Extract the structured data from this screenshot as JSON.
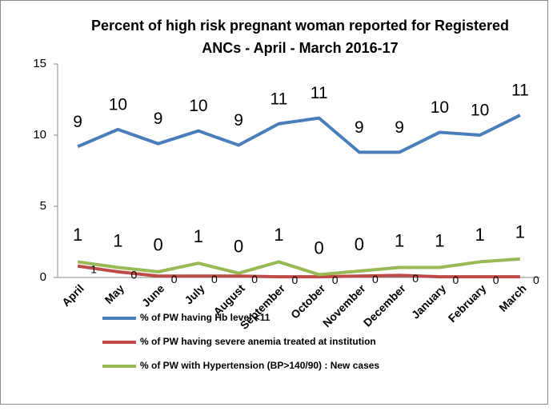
{
  "chart_data": {
    "type": "line",
    "title": "Percent of high risk pregnant woman reported for Registered ANCs - April - March 2016-17",
    "categories": [
      "April",
      "May",
      "June",
      "July",
      "August",
      "September",
      "October",
      "November",
      "December",
      "January",
      "February",
      "March"
    ],
    "series": [
      {
        "name": "% of PW having Hb level <11",
        "color": "#4a7ebb",
        "values": [
          9.2,
          10.4,
          9.4,
          10.3,
          9.3,
          10.8,
          11.2,
          8.8,
          8.8,
          10.2,
          10.0,
          11.4
        ],
        "value_labels": [
          "9",
          "10",
          "9",
          "10",
          "9",
          "11",
          "11",
          "9",
          "9",
          "10",
          "10",
          "11"
        ]
      },
      {
        "name": "% of PW having severe anemia treated at institution",
        "color": "#be4b48",
        "values": [
          0.8,
          0.4,
          0.1,
          0.1,
          0.1,
          0.05,
          0.05,
          0.1,
          0.15,
          0.05,
          0.05,
          0.05
        ],
        "value_labels": [
          "1",
          "0",
          "0",
          "0",
          "0",
          "0",
          "0",
          "0",
          "0",
          "0",
          "0",
          "0"
        ]
      },
      {
        "name": "% of PW with Hypertension (BP>140/90) : New cases",
        "color": "#98b954",
        "values": [
          1.1,
          0.7,
          0.4,
          1.0,
          0.3,
          1.1,
          0.2,
          0.45,
          0.7,
          0.7,
          1.1,
          1.3
        ],
        "value_labels": [
          "1",
          "1",
          "0",
          "1",
          "0",
          "1",
          "0",
          "0",
          "1",
          "1",
          "1",
          "1"
        ]
      }
    ],
    "ylim": [
      0,
      15
    ],
    "yticks": [
      0,
      5,
      10,
      15
    ],
    "grid": false
  }
}
